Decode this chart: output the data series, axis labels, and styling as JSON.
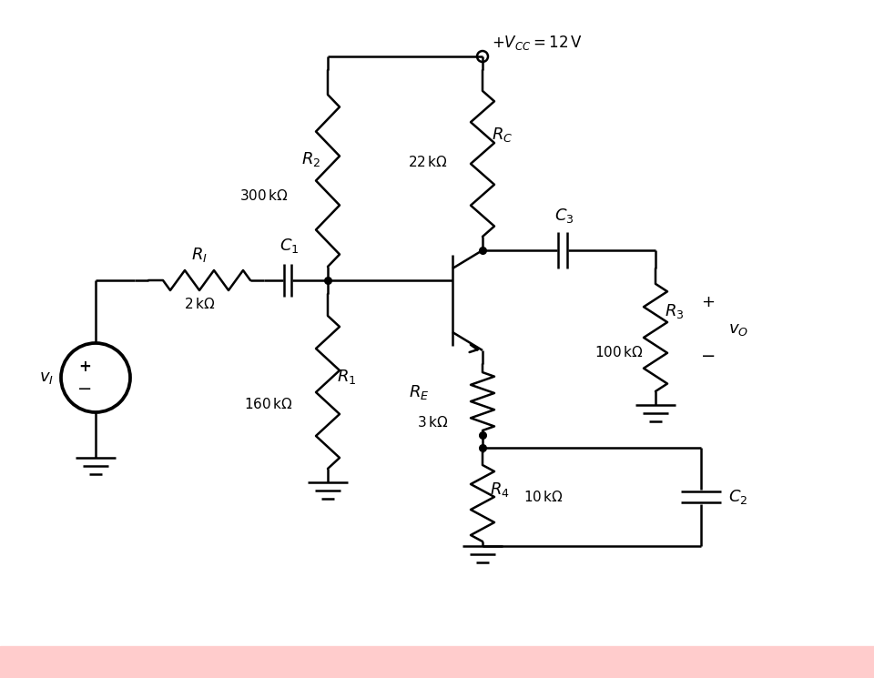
{
  "bg_color": "#ffffff",
  "line_color": "#000000",
  "lw": 1.8,
  "fig_w": 9.6,
  "fig_h": 7.45,
  "vcc_text": "$+V_{CC} = 12\\,\\mathrm{V}$",
  "RC_label": "$R_C$",
  "RC_val": "$22\\,\\mathrm{k\\Omega}$",
  "R2_label": "$R_2$",
  "R2_val": "$300\\,\\mathrm{k\\Omega}$",
  "R1_label": "$R_1$",
  "R1_val": "$160\\,\\mathrm{k\\Omega}$",
  "RI_label": "$R_I$",
  "RI_val": "$2\\,\\mathrm{k\\Omega}$",
  "RE_label": "$R_E$",
  "RE_val": "$3\\,\\mathrm{k\\Omega}$",
  "R3_label": "$R_3$",
  "R3_val": "$100\\,\\mathrm{k\\Omega}$",
  "R4_label": "$R_4$",
  "R4_val": "$10\\,\\mathrm{k\\Omega}$",
  "C1_label": "$C_1$",
  "C2_label": "$C_2$",
  "C3_label": "$C_3$",
  "vi_label": "$v_I$",
  "vo_label": "$v_O$"
}
